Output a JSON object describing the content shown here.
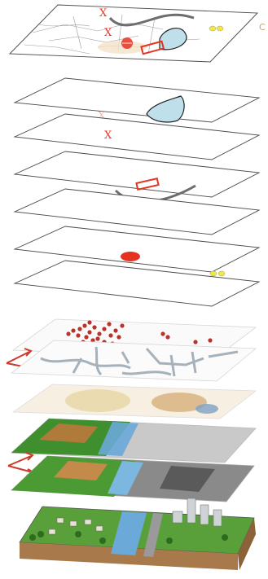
{
  "diagram": {
    "marker_text": "X",
    "edge_stamp": "C",
    "colors": {
      "outline": "#4a4a4a",
      "x_mark": "#e53322",
      "polygon_fill": "#bfe0ea",
      "road": "#6d6d6d",
      "rect_outline": "#e53322",
      "point": "#e53322",
      "dots": "#f2ea3a",
      "arrows": "#cc3a28",
      "terrain_green": "#3f8f2e",
      "river_blue": "#6aa9d8"
    },
    "top_section": {
      "composite_layer": [
        "road-line",
        "polygon",
        "x-marks",
        "red-circle",
        "red-rectangle",
        "yellow-dots",
        "street-network"
      ],
      "separate_layers": [
        "polygon-layer",
        "x-mark-layer",
        "rectangle-road-layer",
        "empty-layer",
        "red-point-layer",
        "yellow-dots-layer"
      ]
    },
    "bottom_section": {
      "layers": [
        "scattered-points-layer",
        "street-network-layer",
        "soils-layer",
        "landcover-layer",
        "elevation-layer",
        "real-world-terrain"
      ],
      "arrow_icons": [
        "double-arrow-icon",
        "double-arrow-icon"
      ]
    }
  }
}
